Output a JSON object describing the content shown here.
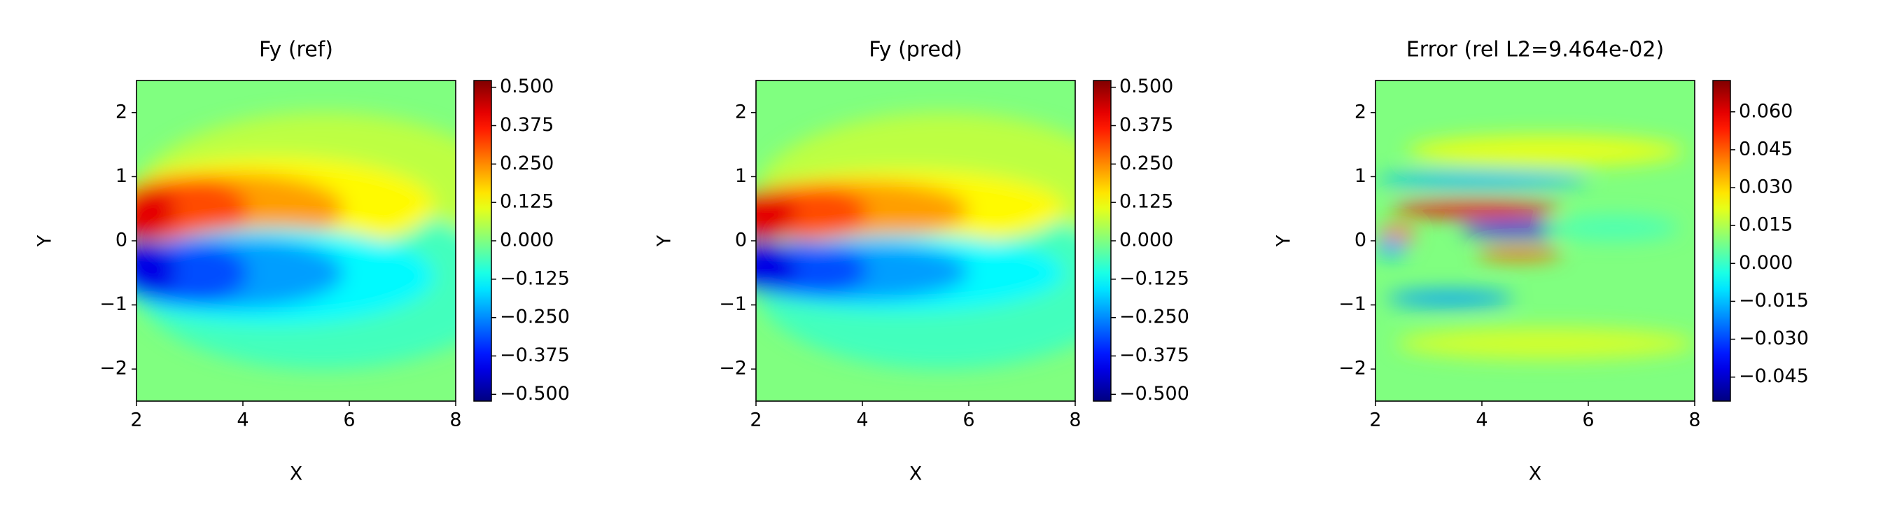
{
  "chart_data": [
    {
      "type": "contour",
      "title": "Fy (ref)",
      "xlabel": "X",
      "ylabel": "Y",
      "xlim": [
        2,
        8
      ],
      "xticks": [
        2,
        4,
        6,
        8
      ],
      "ylim": [
        -2.5,
        2.5
      ],
      "yticks": [
        {
          "value": -2,
          "label": "−2"
        },
        {
          "value": -1,
          "label": "−1"
        },
        0,
        1,
        2
      ],
      "colormap": "jet",
      "clim": [
        -0.522,
        0.522
      ],
      "cticks": [
        {
          "value": -0.5,
          "label": "−0.500"
        },
        {
          "value": -0.375,
          "label": "−0.375"
        },
        {
          "value": -0.25,
          "label": "−0.250"
        },
        {
          "value": -0.125,
          "label": "−0.125"
        },
        {
          "value": 0,
          "label": "0.000"
        },
        {
          "value": 0.125,
          "label": "0.125"
        },
        {
          "value": 0.25,
          "label": "0.250"
        },
        {
          "value": 0.375,
          "label": "0.375"
        },
        {
          "value": 0.5,
          "label": "0.500"
        }
      ]
    },
    {
      "type": "contour",
      "title": "Fy (pred)",
      "xlabel": "X",
      "ylabel": "Y",
      "xlim": [
        2,
        8
      ],
      "xticks": [
        2,
        4,
        6,
        8
      ],
      "ylim": [
        -2.5,
        2.5
      ],
      "yticks": [
        {
          "value": -2,
          "label": "−2"
        },
        {
          "value": -1,
          "label": "−1"
        },
        0,
        1,
        2
      ],
      "colormap": "jet",
      "clim": [
        -0.522,
        0.522
      ],
      "cticks": [
        {
          "value": -0.5,
          "label": "−0.500"
        },
        {
          "value": -0.375,
          "label": "−0.375"
        },
        {
          "value": -0.25,
          "label": "−0.250"
        },
        {
          "value": -0.125,
          "label": "−0.125"
        },
        {
          "value": 0,
          "label": "0.000"
        },
        {
          "value": 0.125,
          "label": "0.125"
        },
        {
          "value": 0.25,
          "label": "0.250"
        },
        {
          "value": 0.375,
          "label": "0.375"
        },
        {
          "value": 0.5,
          "label": "0.500"
        }
      ]
    },
    {
      "type": "contour",
      "title": "Error (rel L2=9.464e-02)",
      "xlabel": "X",
      "ylabel": "Y",
      "xlim": [
        2,
        8
      ],
      "xticks": [
        2,
        4,
        6,
        8
      ],
      "ylim": [
        -2.5,
        2.5
      ],
      "yticks": [
        {
          "value": -2,
          "label": "−2"
        },
        {
          "value": -1,
          "label": "−1"
        },
        0,
        1,
        2
      ],
      "colormap": "jet",
      "clim": [
        -0.0545,
        0.0724
      ],
      "cticks": [
        {
          "value": -0.045,
          "label": "−0.045"
        },
        {
          "value": -0.03,
          "label": "−0.030"
        },
        {
          "value": -0.015,
          "label": "−0.015"
        },
        {
          "value": 0,
          "label": "0.000"
        },
        {
          "value": 0.015,
          "label": "0.015"
        },
        {
          "value": 0.03,
          "label": "0.030"
        },
        {
          "value": 0.045,
          "label": "0.045"
        },
        {
          "value": 0.06,
          "label": "0.060"
        }
      ]
    }
  ]
}
